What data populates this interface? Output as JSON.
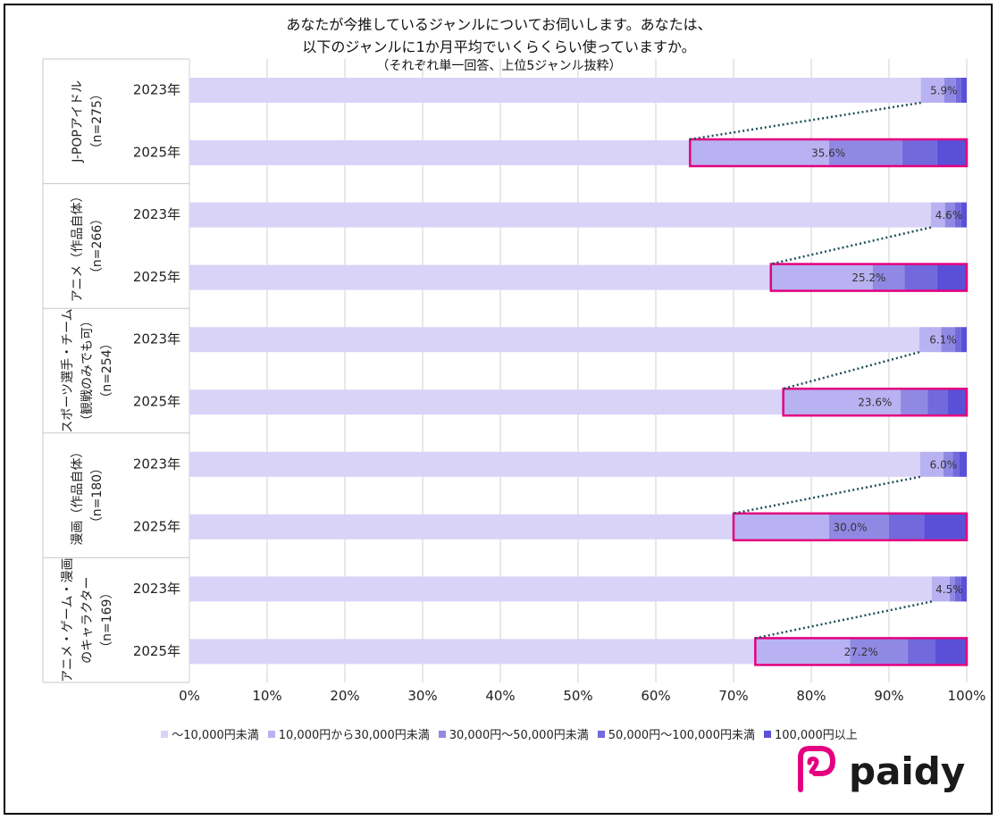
{
  "title_lines": [
    "あなたが今推しているジャンルについてお伺いします。あなたは、",
    "以下のジャンルに1か月平均でいくらくらい使っていますか。",
    "（それぞれ単一回答、上位5ジャンル抜粋）"
  ],
  "brand": {
    "name": "paidy",
    "color": "#e4007f"
  },
  "colors": {
    "segments": [
      "#d9d3f7",
      "#b8b2f2",
      "#9089e4",
      "#7169dc",
      "#5a50d8"
    ],
    "highlight": "#e4007f",
    "connector": "#1f4e5a",
    "grid": "#d0d0d0"
  },
  "chart_data": {
    "type": "bar",
    "orientation": "horizontal",
    "stacked": true,
    "percent": true,
    "xlim": [
      0,
      100
    ],
    "xticks": [
      "0%",
      "10%",
      "20%",
      "30%",
      "40%",
      "50%",
      "60%",
      "70%",
      "80%",
      "90%",
      "100%"
    ],
    "legend_position": "bottom",
    "series_names": [
      "～10,000円未満",
      "10,000円から30,000円未満",
      "30,000円～50,000円未満",
      "50,000円～100,000円未満",
      "100,000円以上"
    ],
    "groups": [
      {
        "label_lines": [
          "J-POPアイドル",
          "（n=275）"
        ],
        "rows": [
          {
            "year": "2023年",
            "values": [
              94.1,
              3.0,
              1.5,
              0.7,
              0.7
            ],
            "label": "5.9%"
          },
          {
            "year": "2025年",
            "values": [
              64.4,
              17.9,
              9.4,
              4.5,
              3.8
            ],
            "label": "35.6%"
          }
        ]
      },
      {
        "label_lines": [
          "アニメ（作品自体）",
          "（n=266）"
        ],
        "rows": [
          {
            "year": "2023年",
            "values": [
              95.4,
              1.8,
              1.3,
              0.8,
              0.7
            ],
            "label": "4.6%"
          },
          {
            "year": "2025年",
            "values": [
              74.8,
              13.1,
              4.1,
              4.2,
              3.8
            ],
            "label": "25.2%"
          }
        ]
      },
      {
        "label_lines": [
          "スポーツ選手・チーム",
          "（観戦のみでも可）",
          "（n=254）"
        ],
        "rows": [
          {
            "year": "2023年",
            "values": [
              93.9,
              2.8,
              1.8,
              0.8,
              0.7
            ],
            "label": "6.1%"
          },
          {
            "year": "2025年",
            "values": [
              76.4,
              15.1,
              3.5,
              2.5,
              2.5
            ],
            "label": "23.6%"
          }
        ]
      },
      {
        "label_lines": [
          "漫画（作品自体）",
          "（n=180）"
        ],
        "rows": [
          {
            "year": "2023年",
            "values": [
              94.0,
              3.0,
              1.2,
              0.8,
              1.0
            ],
            "label": "6.0%"
          },
          {
            "year": "2025年",
            "values": [
              70.0,
              12.3,
              7.7,
              4.5,
              5.5
            ],
            "label": "30.0%"
          }
        ]
      },
      {
        "label_lines": [
          "アニメ・ゲーム・漫画",
          "のキャラクター",
          "（n=169）"
        ],
        "rows": [
          {
            "year": "2023年",
            "values": [
              95.5,
              2.3,
              0.7,
              0.8,
              0.7
            ],
            "label": "4.5%"
          },
          {
            "year": "2025年",
            "values": [
              72.8,
              12.2,
              7.4,
              3.5,
              4.1
            ],
            "label": "27.2%"
          }
        ]
      }
    ]
  }
}
